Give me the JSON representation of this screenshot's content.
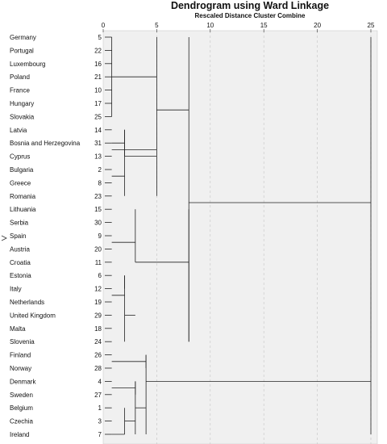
{
  "chart": {
    "title": "Dendrogram using Ward Linkage",
    "subtitle": "Rescaled Distance Cluster Combine"
  },
  "chart_data": {
    "type": "dendrogram",
    "axis": {
      "ticks": [
        0,
        5,
        10,
        15,
        20,
        25
      ],
      "range": [
        0,
        25
      ],
      "grid": "vertical dashed"
    },
    "leaves": [
      {
        "name": "Germany",
        "case": "5"
      },
      {
        "name": "Portugal",
        "case": "22"
      },
      {
        "name": "Luxembourg",
        "case": "16"
      },
      {
        "name": "Poland",
        "case": "21"
      },
      {
        "name": "France",
        "case": "10"
      },
      {
        "name": "Hungary",
        "case": "17"
      },
      {
        "name": "Slovakia",
        "case": "25"
      },
      {
        "name": "Latvia",
        "case": "14"
      },
      {
        "name": "Bosnia and Herzegovina",
        "case": "31"
      },
      {
        "name": "Cyprus",
        "case": "13"
      },
      {
        "name": "Bulgaria",
        "case": "2"
      },
      {
        "name": "Greece",
        "case": "8"
      },
      {
        "name": "Romania",
        "case": "23"
      },
      {
        "name": "Lithuania",
        "case": "15"
      },
      {
        "name": "Serbia",
        "case": "30"
      },
      {
        "name": "Spain",
        "case": "9"
      },
      {
        "name": "Austria",
        "case": "20"
      },
      {
        "name": "Croatia",
        "case": "11"
      },
      {
        "name": "Estonia",
        "case": "6"
      },
      {
        "name": "Italy",
        "case": "12"
      },
      {
        "name": "Netherlands",
        "case": "19"
      },
      {
        "name": "United Kingdom",
        "case": "29"
      },
      {
        "name": "Malta",
        "case": "18"
      },
      {
        "name": "Slovenia",
        "case": "24"
      },
      {
        "name": "Finland",
        "case": "26"
      },
      {
        "name": "Norway",
        "case": "28"
      },
      {
        "name": "Denmark",
        "case": "4"
      },
      {
        "name": "Sweden",
        "case": "27"
      },
      {
        "name": "Belgium",
        "case": "1"
      },
      {
        "name": "Czechia",
        "case": "3"
      },
      {
        "name": "Ireland",
        "case": "7"
      }
    ],
    "merges": [
      {
        "leaves": [
          0,
          6
        ],
        "height": 0.8
      },
      {
        "leaves": [
          7,
          9
        ],
        "height": 2
      },
      {
        "leaves": [
          7,
          12
        ],
        "height": 2
      },
      {
        "leaves": [
          0,
          12
        ],
        "height": 5
      },
      {
        "leaves": [
          13,
          17
        ],
        "height": 3
      },
      {
        "leaves": [
          18,
          19
        ],
        "height": 2
      },
      {
        "leaves": [
          18,
          23
        ],
        "height": 2
      },
      {
        "leaves": [
          13,
          23
        ],
        "height": 8
      },
      {
        "leaves": [
          0,
          23
        ],
        "height": 8
      },
      {
        "leaves": [
          24,
          25
        ],
        "height": 4
      },
      {
        "leaves": [
          26,
          27
        ],
        "height": 3
      },
      {
        "leaves": [
          28,
          30
        ],
        "height": 2
      },
      {
        "leaves": [
          26,
          30
        ],
        "height": 3
      },
      {
        "leaves": [
          24,
          30
        ],
        "height": 4
      },
      {
        "leaves": [
          0,
          30
        ],
        "height": 25
      }
    ]
  }
}
